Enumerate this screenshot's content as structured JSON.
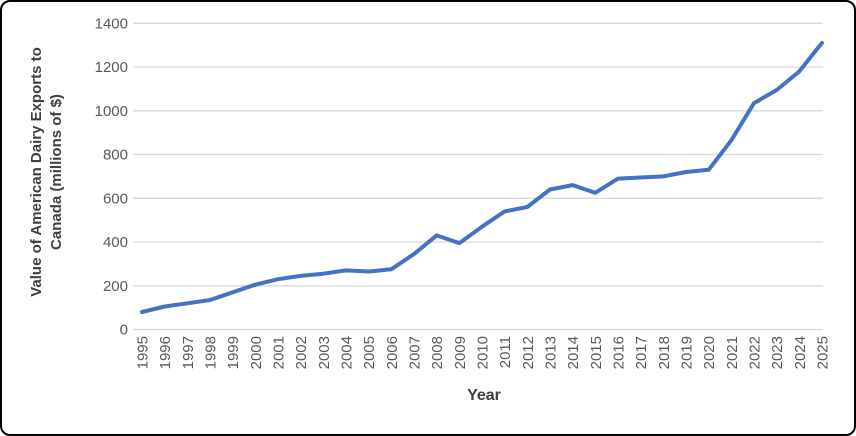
{
  "chart_data": {
    "type": "line",
    "x": [
      1995,
      1996,
      1997,
      1998,
      1999,
      2000,
      2001,
      2002,
      2003,
      2004,
      2005,
      2006,
      2007,
      2008,
      2009,
      2010,
      2011,
      2012,
      2013,
      2014,
      2015,
      2016,
      2017,
      2018,
      2019,
      2020,
      2021,
      2022,
      2023,
      2024,
      2025
    ],
    "series": [
      {
        "name": "Value of American Dairy Exports to Canada",
        "values": [
          80,
          105,
          120,
          135,
          170,
          205,
          230,
          245,
          255,
          270,
          265,
          275,
          345,
          430,
          395,
          470,
          540,
          560,
          640,
          660,
          625,
          690,
          695,
          700,
          720,
          730,
          865,
          1035,
          1095,
          1180,
          1310
        ],
        "color": "#4472C4"
      }
    ],
    "title": "",
    "xlabel": "Year",
    "ylabel": "Value of American Dairy Exports to Canada (millions of $)",
    "y_axis_title_lines": [
      "Value of American Dairy Exports to",
      "Canada (millions of $)"
    ],
    "ylim": [
      0,
      1400
    ],
    "y_ticks": [
      "0",
      "200",
      "400",
      "600",
      "800",
      "1000",
      "1200",
      "1400"
    ],
    "x_tick_labels": [
      "1995",
      "1996",
      "1997",
      "1998",
      "1999",
      "2000",
      "2001",
      "2002",
      "2003",
      "2004",
      "2005",
      "2006",
      "2007",
      "2008",
      "2009",
      "2010",
      "2011",
      "2012",
      "2013",
      "2014",
      "2015",
      "2016",
      "2017",
      "2018",
      "2019",
      "2020",
      "2021",
      "2022",
      "2023",
      "2024",
      "2025"
    ],
    "grid": "horizontal",
    "legend_position": "none",
    "colors": {
      "line": "#4472C4",
      "gridline": "#D9D9D9",
      "tick_label": "#595959",
      "axis_title": "#404040",
      "background": "#FFFFFF",
      "frame_border": "#000000"
    }
  }
}
